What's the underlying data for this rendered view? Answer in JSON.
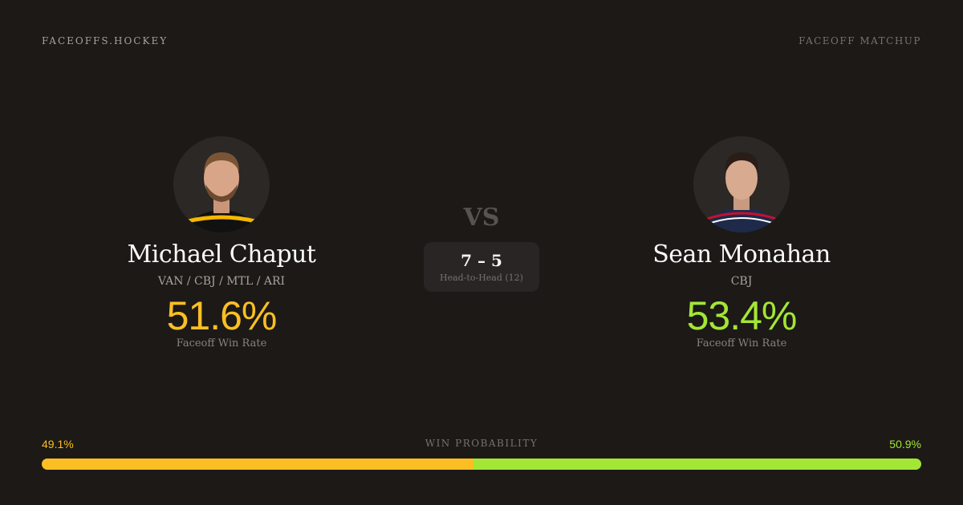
{
  "header": {
    "brand": "FACEOFFS.HOCKEY",
    "tag": "FACEOFF MATCHUP"
  },
  "players": [
    {
      "name": "Michael Chaput",
      "teams": "VAN / CBJ / MTL / ARI",
      "win_rate": "51.6%",
      "win_rate_label": "Faceoff Win Rate",
      "color": "#fbbf24",
      "jersey": "#111111",
      "trim": "#f5b800"
    },
    {
      "name": "Sean Monahan",
      "teams": "CBJ",
      "win_rate": "53.4%",
      "win_rate_label": "Faceoff Win Rate",
      "color": "#a3e635",
      "jersey": "#1f2a4a",
      "trim": "#c8102e"
    }
  ],
  "vs": "VS",
  "head_to_head": {
    "score": "7 – 5",
    "label": "Head-to-Head (12)"
  },
  "win_probability": {
    "label": "WIN PROBABILITY",
    "left": "49.1%",
    "right": "50.9%",
    "left_value": 49.1,
    "right_value": 50.9
  }
}
